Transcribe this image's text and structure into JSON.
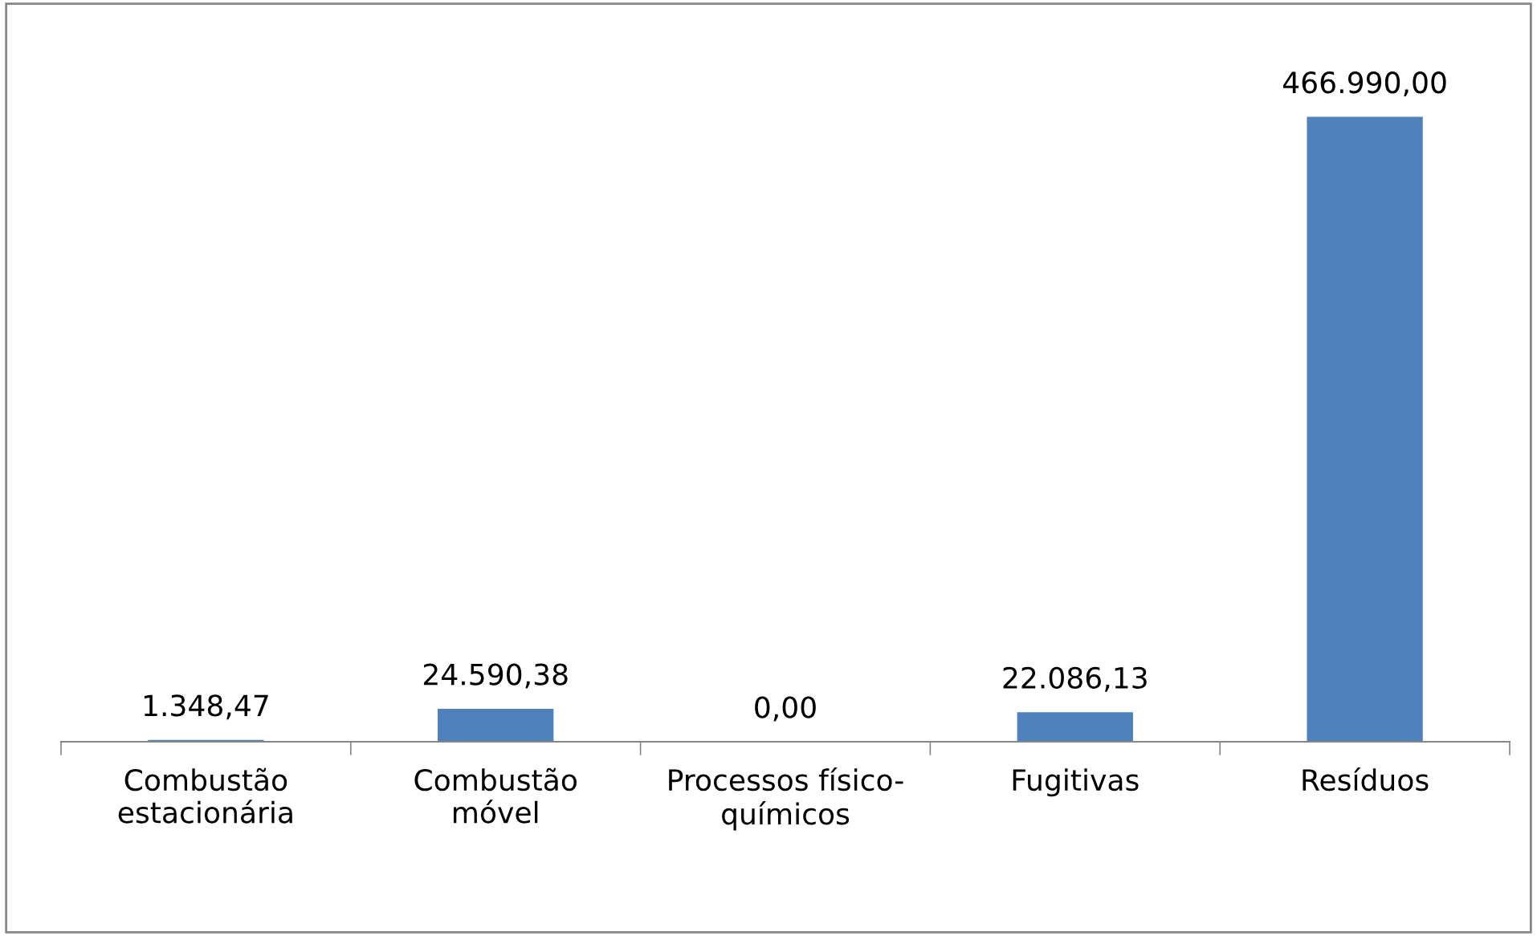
{
  "chart_data": {
    "type": "bar",
    "categories": [
      "Combustão\nestacionária",
      "Combustão\nmóvel",
      "Processos físico-\nquímicos",
      "Fugitivas",
      "Resíduos"
    ],
    "values": [
      1348.47,
      24590.38,
      0.0,
      22086.13,
      466990.0
    ],
    "value_labels": [
      "1.348,47",
      "24.590,38",
      "0,00",
      "22.086,13",
      "466.990,00"
    ],
    "color": "#4f81bd",
    "grid": false,
    "legend": false
  }
}
